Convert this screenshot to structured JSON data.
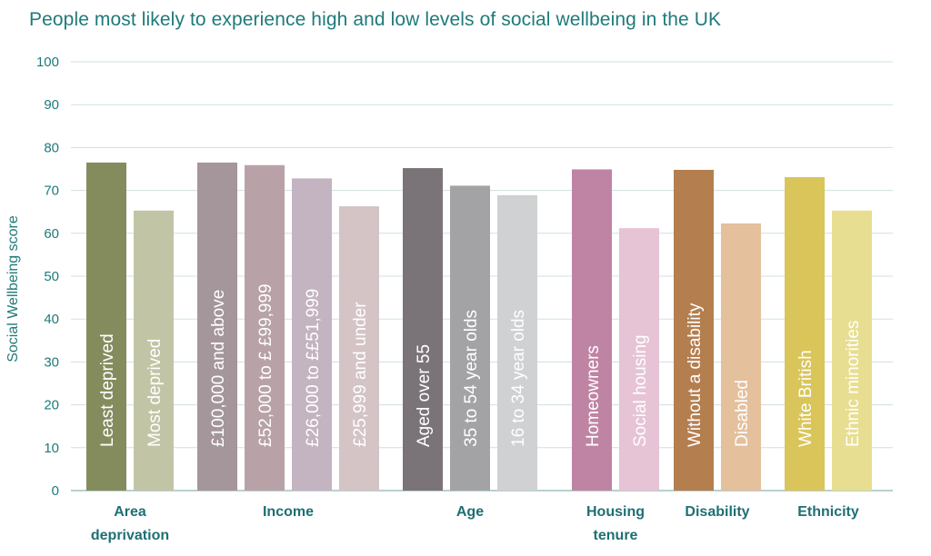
{
  "chart_data": {
    "type": "bar",
    "title": "People most likely to experience high and low levels of social wellbeing in the UK",
    "ylabel": "Social Wellbeing score",
    "ylim": [
      0,
      100
    ],
    "yticks": [
      0,
      10,
      20,
      30,
      40,
      50,
      60,
      70,
      80,
      90,
      100
    ],
    "grid": true,
    "groups": [
      {
        "label_lines": [
          "Area",
          "deprivation"
        ],
        "bars": [
          {
            "label": "Least deprived",
            "value": 76.5,
            "color": "#848c5e"
          },
          {
            "label": "Most deprived",
            "value": 65.3,
            "color": "#c2c5a5"
          }
        ]
      },
      {
        "label_lines": [
          "Income"
        ],
        "bars": [
          {
            "label": "£100,000 and above",
            "value": 76.5,
            "color": "#a4969b"
          },
          {
            "label": "£52,000 to £ £99,999",
            "value": 75.9,
            "color": "#b8a2a8"
          },
          {
            "label": "£26,000 to ££51,999",
            "value": 72.8,
            "color": "#c4b3c1"
          },
          {
            "label": "£25,999 and under",
            "value": 66.3,
            "color": "#d4c4c6"
          }
        ]
      },
      {
        "label_lines": [
          "Age"
        ],
        "bars": [
          {
            "label": "Aged over 55",
            "value": 75.2,
            "color": "#7a7378"
          },
          {
            "label": "35 to 54  year olds",
            "value": 71.1,
            "color": "#a3a2a5"
          },
          {
            "label": "16 to 34 year olds",
            "value": 68.9,
            "color": "#cfd1d2"
          }
        ]
      },
      {
        "label_lines": [
          "Housing",
          "tenure"
        ],
        "bars": [
          {
            "label": "Homeowners",
            "value": 74.9,
            "color": "#bf84a3"
          },
          {
            "label": "Social housing",
            "value": 61.2,
            "color": "#e6c4d5"
          }
        ]
      },
      {
        "label_lines": [
          "Disability"
        ],
        "bars": [
          {
            "label": "Without a disability",
            "value": 74.8,
            "color": "#b47e4f"
          },
          {
            "label": "Disabled",
            "value": 62.3,
            "color": "#e4c09d"
          }
        ]
      },
      {
        "label_lines": [
          "Ethnicity"
        ],
        "bars": [
          {
            "label": "White British",
            "value": 73.1,
            "color": "#d9c55a"
          },
          {
            "label": "Ethnic minorities",
            "value": 65.3,
            "color": "#e8de91"
          }
        ]
      }
    ]
  }
}
